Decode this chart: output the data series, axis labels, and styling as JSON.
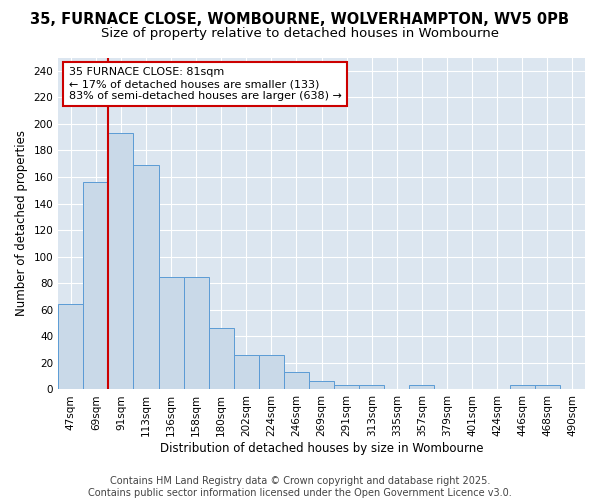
{
  "title_line1": "35, FURNACE CLOSE, WOMBOURNE, WOLVERHAMPTON, WV5 0PB",
  "title_line2": "Size of property relative to detached houses in Wombourne",
  "xlabel": "Distribution of detached houses by size in Wombourne",
  "ylabel": "Number of detached properties",
  "categories": [
    "47sqm",
    "69sqm",
    "91sqm",
    "113sqm",
    "136sqm",
    "158sqm",
    "180sqm",
    "202sqm",
    "224sqm",
    "246sqm",
    "269sqm",
    "291sqm",
    "313sqm",
    "335sqm",
    "357sqm",
    "379sqm",
    "401sqm",
    "424sqm",
    "446sqm",
    "468sqm",
    "490sqm"
  ],
  "values": [
    64,
    156,
    193,
    169,
    85,
    85,
    46,
    26,
    26,
    13,
    6,
    3,
    3,
    0,
    3,
    0,
    0,
    0,
    3,
    3,
    0
  ],
  "bar_color": "#c9d9e8",
  "bar_edge_color": "#5b9bd5",
  "annotation_text": "35 FURNACE CLOSE: 81sqm\n← 17% of detached houses are smaller (133)\n83% of semi-detached houses are larger (638) →",
  "annotation_box_color": "#ffffff",
  "annotation_box_edge": "#cc0000",
  "vline_color": "#cc0000",
  "ylim": [
    0,
    250
  ],
  "yticks": [
    0,
    20,
    40,
    60,
    80,
    100,
    120,
    140,
    160,
    180,
    200,
    220,
    240
  ],
  "footer": "Contains HM Land Registry data © Crown copyright and database right 2025.\nContains public sector information licensed under the Open Government Licence v3.0.",
  "bg_color": "#ffffff",
  "plot_bg_color": "#dce6f0",
  "grid_color": "#ffffff",
  "title_fontsize": 10.5,
  "subtitle_fontsize": 9.5,
  "axis_label_fontsize": 8.5,
  "tick_fontsize": 7.5,
  "annotation_fontsize": 8,
  "footer_fontsize": 7
}
